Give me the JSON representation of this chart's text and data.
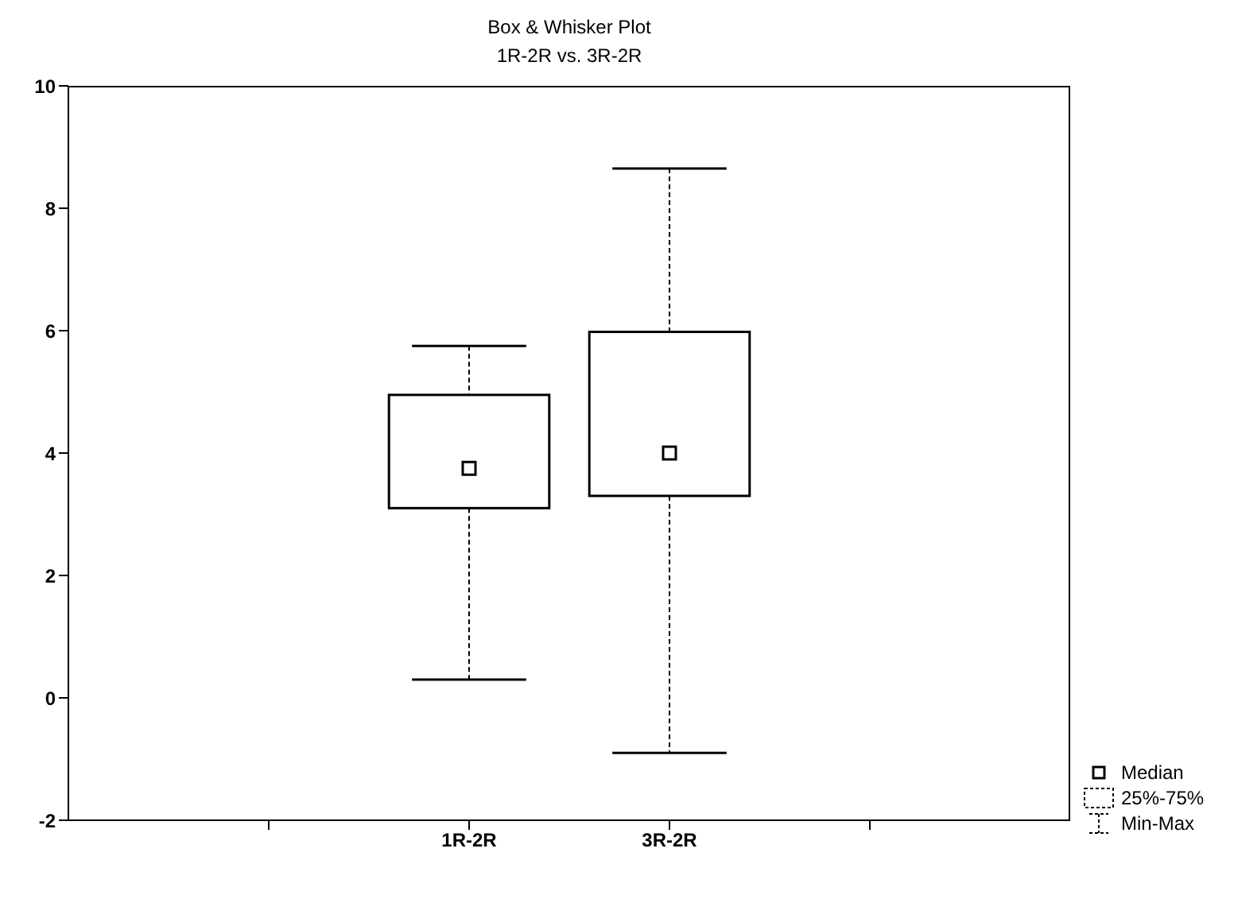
{
  "chart_data": {
    "type": "box",
    "title": "Box & Whisker Plot",
    "subtitle": "1R-2R vs. 3R-2R",
    "categories": [
      "1R-2R",
      "3R-2R"
    ],
    "boxes": [
      {
        "low": 0.3,
        "q1": 3.1,
        "median": 3.75,
        "q3": 4.95,
        "high": 5.75
      },
      {
        "low": -0.9,
        "q1": 3.3,
        "median": 4.0,
        "q3": 5.98,
        "high": 8.65
      }
    ],
    "ylim": [
      -2,
      10
    ],
    "yticks": [
      -2,
      0,
      2,
      4,
      6,
      8,
      10
    ],
    "marker": "square",
    "annotations": [
      "Median",
      "25%-75%",
      "Min-Max"
    ]
  }
}
